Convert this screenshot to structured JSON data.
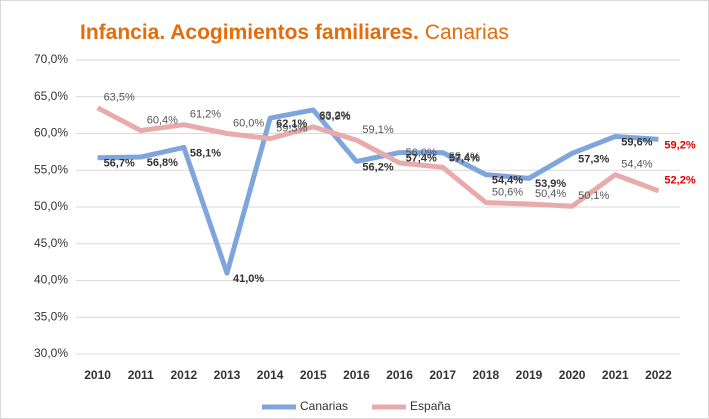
{
  "chart_data": {
    "type": "line",
    "title": "Infancia. Acogimientos familiares.",
    "subtitle": "Canarias",
    "categories": [
      "2010",
      "2011",
      "2012",
      "2013",
      "2014",
      "2015",
      "2016",
      "2016",
      "2017",
      "2018",
      "2019",
      "2020",
      "2021",
      "2022"
    ],
    "series": [
      {
        "name": "Canarias",
        "color": "#7fa6dc",
        "label_color": "#333333",
        "last_label_color": "#e00000",
        "values": [
          56.7,
          56.8,
          58.1,
          41.0,
          62.1,
          63.2,
          56.2,
          57.4,
          57.4,
          54.4,
          53.9,
          57.3,
          59.6,
          59.2
        ],
        "value_labels": [
          "56,7%",
          "56,8%",
          "58,1%",
          "41,0%",
          "62,1%",
          "63,2%",
          "56,2%",
          "57,4%",
          "57,4%",
          "54,4%",
          "53,9%",
          "57,3%",
          "59,6%",
          "59,2%"
        ]
      },
      {
        "name": "España",
        "color": "#e8aaaa",
        "label_color": "#555555",
        "last_label_color": "#e00000",
        "values": [
          63.5,
          60.4,
          61.2,
          60.0,
          59.3,
          60.9,
          59.1,
          56.0,
          55.4,
          50.6,
          50.4,
          50.1,
          54.4,
          52.2
        ],
        "value_labels": [
          "63,5%",
          "60,4%",
          "61,2%",
          "60,0%",
          "59,3%",
          "60,9%",
          "59,1%",
          "56,0%",
          "55,4%",
          "50,6%",
          "50,4%",
          "50,1%",
          "54,4%",
          "52,2%"
        ]
      }
    ],
    "ylim": [
      30,
      70
    ],
    "yticks": [
      {
        "value": 30,
        "label": "30,0%"
      },
      {
        "value": 35,
        "label": "35,0%"
      },
      {
        "value": 40,
        "label": "40,0%"
      },
      {
        "value": 45,
        "label": "45,0%"
      },
      {
        "value": 50,
        "label": "50,0%"
      },
      {
        "value": 55,
        "label": "55,0%"
      },
      {
        "value": 60,
        "label": "60,0%"
      },
      {
        "value": 65,
        "label": "65,0%"
      },
      {
        "value": 70,
        "label": "70,0%"
      }
    ],
    "grid": true,
    "legend": "bottom"
  }
}
